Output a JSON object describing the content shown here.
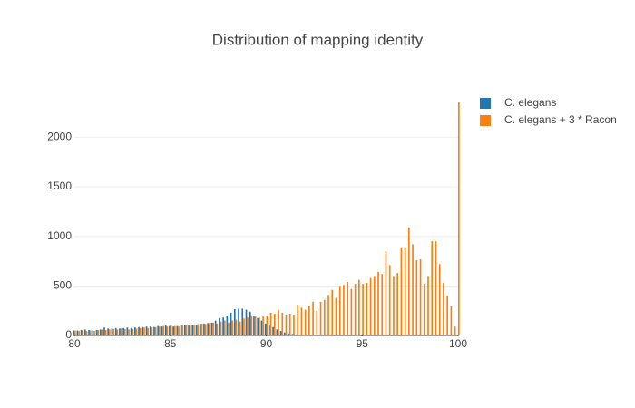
{
  "chart_data": {
    "type": "bar",
    "title": "Distribution of mapping identity",
    "x": [
      80,
      80.2,
      80.4,
      80.6,
      80.8,
      81,
      81.2,
      81.4,
      81.6,
      81.8,
      82,
      82.2,
      82.4,
      82.6,
      82.8,
      83,
      83.2,
      83.4,
      83.6,
      83.8,
      84,
      84.2,
      84.4,
      84.6,
      84.8,
      85,
      85.2,
      85.4,
      85.6,
      85.8,
      86,
      86.2,
      86.4,
      86.6,
      86.8,
      87,
      87.2,
      87.4,
      87.6,
      87.8,
      88,
      88.2,
      88.4,
      88.6,
      88.8,
      89,
      89.2,
      89.4,
      89.6,
      89.8,
      90,
      90.2,
      90.4,
      90.6,
      90.8,
      91,
      91.2,
      91.4,
      91.6,
      91.8,
      92,
      92.2,
      92.4,
      92.6,
      92.8,
      93,
      93.2,
      93.4,
      93.6,
      93.8,
      94,
      94.2,
      94.4,
      94.6,
      94.8,
      95,
      95.2,
      95.4,
      95.6,
      95.8,
      96,
      96.2,
      96.4,
      96.6,
      96.8,
      97,
      97.2,
      97.4,
      97.6,
      97.8,
      98,
      98.2,
      98.4,
      98.6,
      98.8,
      99,
      99.2,
      99.4,
      99.6,
      99.8,
      100
    ],
    "series": [
      {
        "name": "C. elegans",
        "color": "#1f77b4",
        "values": [
          50,
          50,
          55,
          60,
          55,
          50,
          55,
          60,
          80,
          70,
          70,
          75,
          70,
          75,
          80,
          75,
          80,
          85,
          85,
          90,
          90,
          85,
          95,
          90,
          100,
          95,
          90,
          95,
          100,
          105,
          100,
          105,
          110,
          115,
          120,
          125,
          130,
          150,
          175,
          180,
          200,
          230,
          265,
          270,
          270,
          260,
          240,
          200,
          175,
          150,
          120,
          100,
          85,
          60,
          45,
          30,
          20,
          15,
          10,
          8,
          5,
          4,
          3,
          2,
          1,
          0,
          0,
          0,
          0,
          0,
          0,
          0,
          0,
          0,
          0,
          0,
          0,
          0,
          0,
          0,
          0,
          0,
          0,
          0,
          0,
          0,
          0,
          0,
          0,
          0,
          0,
          0,
          0,
          0,
          0,
          0,
          0,
          0,
          0,
          0,
          0
        ]
      },
      {
        "name": "C. elegans + 3 * Racon",
        "color": "#ff7f0e",
        "values": [
          50,
          45,
          50,
          45,
          50,
          45,
          55,
          60,
          55,
          60,
          65,
          60,
          70,
          65,
          60,
          65,
          70,
          75,
          80,
          75,
          80,
          85,
          90,
          95,
          90,
          100,
          95,
          90,
          100,
          105,
          110,
          105,
          115,
          120,
          115,
          125,
          130,
          120,
          140,
          150,
          130,
          150,
          160,
          140,
          170,
          180,
          190,
          200,
          180,
          190,
          200,
          230,
          220,
          260,
          230,
          210,
          220,
          210,
          310,
          280,
          260,
          300,
          340,
          250,
          340,
          360,
          410,
          460,
          380,
          500,
          510,
          540,
          470,
          520,
          560,
          520,
          530,
          580,
          600,
          640,
          620,
          850,
          710,
          600,
          630,
          890,
          880,
          1090,
          920,
          760,
          770,
          520,
          600,
          950,
          950,
          720,
          530,
          400,
          300,
          90,
          2350
        ]
      }
    ],
    "xlim": [
      80,
      100
    ],
    "xticks": [
      80,
      85,
      90,
      95,
      100
    ],
    "ylim": [
      0,
      2470
    ],
    "yticks": [
      0,
      500,
      1000,
      1500,
      2000
    ],
    "grid": true
  }
}
